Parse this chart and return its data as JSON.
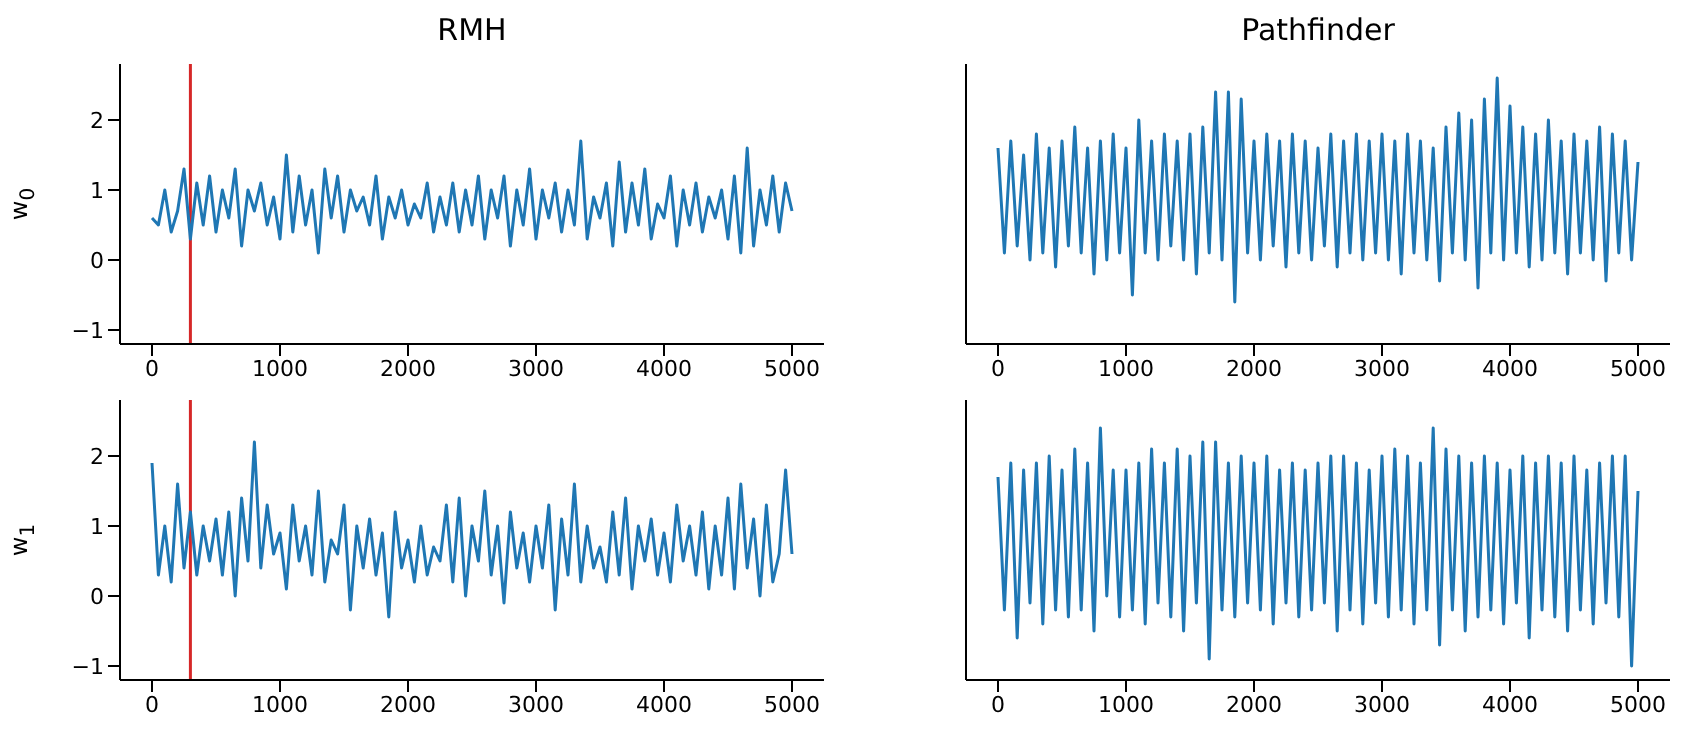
{
  "chart_data": [
    {
      "type": "line",
      "title": "RMH",
      "ylabel": "w$_{0}$",
      "xlim": [
        -250,
        5250
      ],
      "xticks": [
        0,
        1000,
        2000,
        3000,
        4000,
        5000
      ],
      "ylim": [
        -1.2,
        2.8
      ],
      "yticks": [
        -1,
        0,
        1,
        2
      ],
      "x": [
        0,
        50,
        100,
        150,
        200,
        250,
        300,
        350,
        400,
        450,
        500,
        550,
        600,
        650,
        700,
        750,
        800,
        850,
        900,
        950,
        1000,
        1050,
        1100,
        1150,
        1200,
        1250,
        1300,
        1350,
        1400,
        1450,
        1500,
        1550,
        1600,
        1650,
        1700,
        1750,
        1800,
        1850,
        1900,
        1950,
        2000,
        2050,
        2100,
        2150,
        2200,
        2250,
        2300,
        2350,
        2400,
        2450,
        2500,
        2550,
        2600,
        2650,
        2700,
        2750,
        2800,
        2850,
        2900,
        2950,
        3000,
        3050,
        3100,
        3150,
        3200,
        3250,
        3300,
        3350,
        3400,
        3450,
        3500,
        3550,
        3600,
        3650,
        3700,
        3750,
        3800,
        3850,
        3900,
        3950,
        4000,
        4050,
        4100,
        4150,
        4200,
        4250,
        4300,
        4350,
        4400,
        4450,
        4500,
        4550,
        4600,
        4650,
        4700,
        4750,
        4800,
        4850,
        4900,
        4950,
        5000
      ],
      "series": [
        {
          "color": "#1f77b4",
          "values": [
            0.6,
            0.5,
            1.0,
            0.4,
            0.7,
            1.3,
            0.3,
            1.1,
            0.5,
            1.2,
            0.4,
            1.0,
            0.6,
            1.3,
            0.2,
            1.0,
            0.7,
            1.1,
            0.5,
            0.9,
            0.3,
            1.5,
            0.4,
            1.2,
            0.5,
            1.0,
            0.1,
            1.3,
            0.6,
            1.2,
            0.4,
            1.0,
            0.7,
            0.9,
            0.5,
            1.2,
            0.3,
            0.9,
            0.6,
            1.0,
            0.5,
            0.8,
            0.6,
            1.1,
            0.4,
            0.9,
            0.5,
            1.1,
            0.4,
            1.0,
            0.5,
            1.2,
            0.3,
            1.0,
            0.6,
            1.2,
            0.2,
            1.0,
            0.5,
            1.3,
            0.3,
            1.0,
            0.6,
            1.1,
            0.4,
            1.0,
            0.5,
            1.7,
            0.3,
            0.9,
            0.6,
            1.1,
            0.2,
            1.4,
            0.4,
            1.1,
            0.5,
            1.3,
            0.3,
            0.8,
            0.6,
            1.2,
            0.2,
            1.0,
            0.5,
            1.1,
            0.4,
            0.9,
            0.6,
            1.0,
            0.3,
            1.2,
            0.1,
            1.6,
            0.2,
            1.0,
            0.5,
            1.2,
            0.4,
            1.1,
            0.7
          ]
        }
      ],
      "ref_lines": [
        {
          "axis": "x",
          "value": 300,
          "color": "#d62728"
        }
      ]
    },
    {
      "type": "line",
      "title": "Pathfinder",
      "xlim": [
        -250,
        5250
      ],
      "xticks": [
        0,
        1000,
        2000,
        3000,
        4000,
        5000
      ],
      "ylim": [
        -1.2,
        2.8
      ],
      "yticks": [
        -1,
        0,
        1,
        2
      ],
      "tick_labels": "x",
      "x": [
        0,
        50,
        100,
        150,
        200,
        250,
        300,
        350,
        400,
        450,
        500,
        550,
        600,
        650,
        700,
        750,
        800,
        850,
        900,
        950,
        1000,
        1050,
        1100,
        1150,
        1200,
        1250,
        1300,
        1350,
        1400,
        1450,
        1500,
        1550,
        1600,
        1650,
        1700,
        1750,
        1800,
        1850,
        1900,
        1950,
        2000,
        2050,
        2100,
        2150,
        2200,
        2250,
        2300,
        2350,
        2400,
        2450,
        2500,
        2550,
        2600,
        2650,
        2700,
        2750,
        2800,
        2850,
        2900,
        2950,
        3000,
        3050,
        3100,
        3150,
        3200,
        3250,
        3300,
        3350,
        3400,
        3450,
        3500,
        3550,
        3600,
        3650,
        3700,
        3750,
        3800,
        3850,
        3900,
        3950,
        4000,
        4050,
        4100,
        4150,
        4200,
        4250,
        4300,
        4350,
        4400,
        4450,
        4500,
        4550,
        4600,
        4650,
        4700,
        4750,
        4800,
        4850,
        4900,
        4950,
        5000
      ],
      "series": [
        {
          "color": "#1f77b4",
          "values": [
            1.6,
            0.1,
            1.7,
            0.2,
            1.5,
            0.0,
            1.8,
            0.1,
            1.6,
            -0.1,
            1.7,
            0.2,
            1.9,
            0.1,
            1.6,
            -0.2,
            1.7,
            0.0,
            1.8,
            0.1,
            1.6,
            -0.5,
            2.0,
            0.1,
            1.7,
            0.0,
            1.8,
            0.2,
            1.7,
            0.0,
            1.8,
            -0.2,
            1.9,
            0.1,
            2.4,
            0.0,
            2.4,
            -0.6,
            2.3,
            0.1,
            1.7,
            0.0,
            1.8,
            0.2,
            1.7,
            -0.1,
            1.8,
            0.1,
            1.7,
            0.0,
            1.6,
            0.2,
            1.8,
            -0.1,
            1.7,
            0.1,
            1.8,
            0.0,
            1.7,
            0.1,
            1.8,
            0.0,
            1.7,
            -0.2,
            1.8,
            0.1,
            1.7,
            0.0,
            1.6,
            -0.3,
            1.9,
            0.1,
            2.1,
            0.0,
            2.0,
            -0.4,
            2.3,
            0.1,
            2.6,
            0.0,
            2.2,
            0.1,
            1.9,
            -0.1,
            1.8,
            0.0,
            2.0,
            0.1,
            1.7,
            -0.2,
            1.8,
            0.1,
            1.7,
            0.0,
            1.9,
            -0.3,
            1.8,
            0.1,
            1.7,
            0.0,
            1.4
          ]
        }
      ]
    },
    {
      "type": "line",
      "ylabel": "w$_{1}$",
      "xlim": [
        -250,
        5250
      ],
      "xticks": [
        0,
        1000,
        2000,
        3000,
        4000,
        5000
      ],
      "ylim": [
        -1.2,
        2.8
      ],
      "yticks": [
        -1,
        0,
        1,
        2
      ],
      "x": [
        0,
        50,
        100,
        150,
        200,
        250,
        300,
        350,
        400,
        450,
        500,
        550,
        600,
        650,
        700,
        750,
        800,
        850,
        900,
        950,
        1000,
        1050,
        1100,
        1150,
        1200,
        1250,
        1300,
        1350,
        1400,
        1450,
        1500,
        1550,
        1600,
        1650,
        1700,
        1750,
        1800,
        1850,
        1900,
        1950,
        2000,
        2050,
        2100,
        2150,
        2200,
        2250,
        2300,
        2350,
        2400,
        2450,
        2500,
        2550,
        2600,
        2650,
        2700,
        2750,
        2800,
        2850,
        2900,
        2950,
        3000,
        3050,
        3100,
        3150,
        3200,
        3250,
        3300,
        3350,
        3400,
        3450,
        3500,
        3550,
        3600,
        3650,
        3700,
        3750,
        3800,
        3850,
        3900,
        3950,
        4000,
        4050,
        4100,
        4150,
        4200,
        4250,
        4300,
        4350,
        4400,
        4450,
        4500,
        4550,
        4600,
        4650,
        4700,
        4750,
        4800,
        4850,
        4900,
        4950,
        5000
      ],
      "series": [
        {
          "color": "#1f77b4",
          "values": [
            1.9,
            0.3,
            1.0,
            0.2,
            1.6,
            0.4,
            1.2,
            0.3,
            1.0,
            0.5,
            1.1,
            0.3,
            1.2,
            0.0,
            1.4,
            0.5,
            2.2,
            0.4,
            1.3,
            0.6,
            0.9,
            0.1,
            1.3,
            0.5,
            1.0,
            0.3,
            1.5,
            0.2,
            0.8,
            0.6,
            1.3,
            -0.2,
            1.0,
            0.4,
            1.1,
            0.3,
            0.9,
            -0.3,
            1.2,
            0.4,
            0.8,
            0.2,
            1.0,
            0.3,
            0.7,
            0.5,
            1.3,
            0.2,
            1.4,
            0.0,
            1.0,
            0.5,
            1.5,
            0.3,
            1.0,
            -0.1,
            1.2,
            0.4,
            0.9,
            0.2,
            1.0,
            0.4,
            1.3,
            -0.2,
            1.1,
            0.3,
            1.6,
            0.2,
            1.0,
            0.4,
            0.7,
            0.2,
            1.2,
            0.3,
            1.4,
            0.1,
            1.0,
            0.5,
            1.1,
            0.3,
            0.9,
            0.2,
            1.3,
            0.5,
            1.0,
            0.3,
            1.2,
            0.1,
            1.0,
            0.3,
            1.4,
            0.1,
            1.6,
            0.4,
            1.1,
            0.0,
            1.3,
            0.2,
            0.6,
            1.8,
            0.6
          ]
        }
      ],
      "ref_lines": [
        {
          "axis": "x",
          "value": 300,
          "color": "#d62728"
        }
      ]
    },
    {
      "type": "line",
      "xlim": [
        -250,
        5250
      ],
      "xticks": [
        0,
        1000,
        2000,
        3000,
        4000,
        5000
      ],
      "ylim": [
        -1.2,
        2.8
      ],
      "yticks": [
        -1,
        0,
        1,
        2
      ],
      "tick_labels": "x",
      "x": [
        0,
        50,
        100,
        150,
        200,
        250,
        300,
        350,
        400,
        450,
        500,
        550,
        600,
        650,
        700,
        750,
        800,
        850,
        900,
        950,
        1000,
        1050,
        1100,
        1150,
        1200,
        1250,
        1300,
        1350,
        1400,
        1450,
        1500,
        1550,
        1600,
        1650,
        1700,
        1750,
        1800,
        1850,
        1900,
        1950,
        2000,
        2050,
        2100,
        2150,
        2200,
        2250,
        2300,
        2350,
        2400,
        2450,
        2500,
        2550,
        2600,
        2650,
        2700,
        2750,
        2800,
        2850,
        2900,
        2950,
        3000,
        3050,
        3100,
        3150,
        3200,
        3250,
        3300,
        3350,
        3400,
        3450,
        3500,
        3550,
        3600,
        3650,
        3700,
        3750,
        3800,
        3850,
        3900,
        3950,
        4000,
        4050,
        4100,
        4150,
        4200,
        4250,
        4300,
        4350,
        4400,
        4450,
        4500,
        4550,
        4600,
        4650,
        4700,
        4750,
        4800,
        4850,
        4900,
        4950,
        5000
      ],
      "series": [
        {
          "color": "#1f77b4",
          "values": [
            1.7,
            -0.2,
            1.9,
            -0.6,
            1.8,
            -0.1,
            1.9,
            -0.4,
            2.0,
            -0.2,
            1.8,
            -0.3,
            2.1,
            -0.2,
            1.9,
            -0.5,
            2.4,
            0.0,
            1.8,
            -0.3,
            1.8,
            -0.2,
            1.9,
            -0.4,
            2.1,
            -0.1,
            1.9,
            -0.3,
            2.1,
            -0.5,
            2.0,
            -0.1,
            2.2,
            -0.9,
            2.2,
            -0.2,
            1.9,
            -0.3,
            2.0,
            -0.1,
            1.9,
            -0.2,
            2.0,
            -0.4,
            1.8,
            -0.1,
            1.9,
            -0.3,
            1.8,
            -0.2,
            1.9,
            -0.1,
            2.0,
            -0.5,
            2.0,
            -0.2,
            1.9,
            -0.4,
            1.8,
            -0.1,
            2.0,
            -0.3,
            2.1,
            -0.2,
            2.0,
            -0.4,
            1.9,
            -0.2,
            2.4,
            -0.7,
            2.1,
            -0.2,
            2.0,
            -0.5,
            1.9,
            -0.3,
            2.0,
            -0.2,
            1.9,
            -0.4,
            1.8,
            -0.1,
            2.0,
            -0.6,
            1.9,
            -0.2,
            2.0,
            -0.3,
            1.9,
            -0.5,
            2.0,
            -0.2,
            1.8,
            -0.4,
            1.9,
            -0.1,
            2.0,
            -0.3,
            2.0,
            -1.0,
            1.5
          ]
        }
      ]
    }
  ]
}
